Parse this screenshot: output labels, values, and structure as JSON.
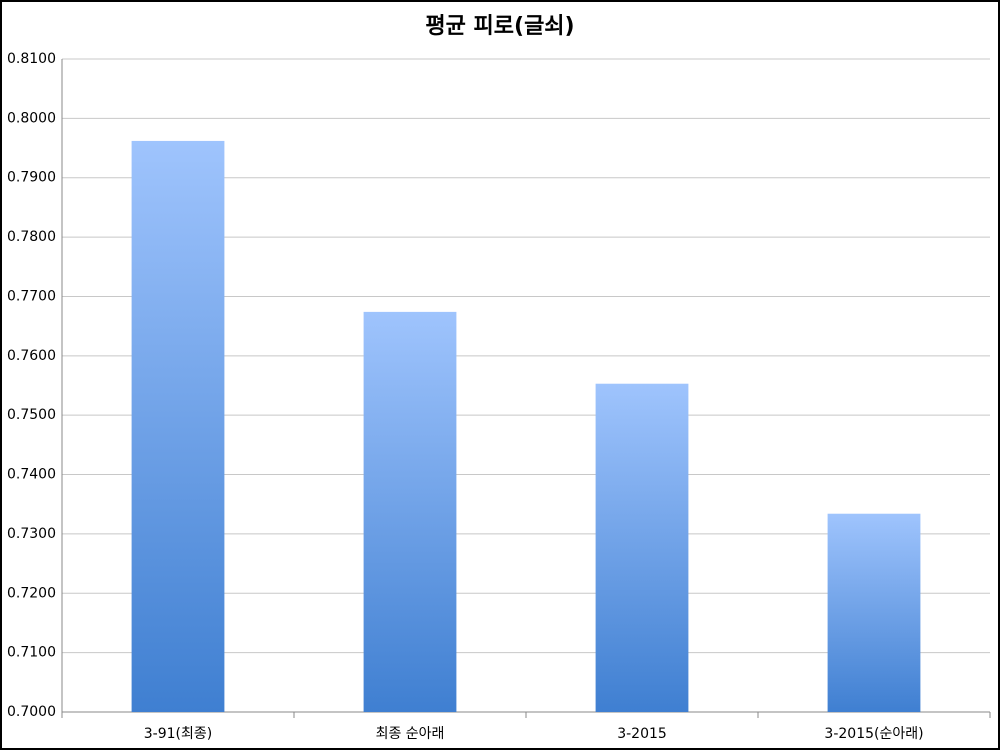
{
  "chart_data": {
    "type": "bar",
    "title": "평균 피로(글쇠)",
    "categories": [
      "3-91(최종)",
      "최종 순아래",
      "3-2015",
      "3-2015(순아래)"
    ],
    "values": [
      0.7962,
      0.7674,
      0.7553,
      0.7334
    ],
    "ylim": [
      0.7,
      0.81
    ],
    "yticks": [
      {
        "value": 0.7,
        "label": "0.7000"
      },
      {
        "value": 0.71,
        "label": "0.7100"
      },
      {
        "value": 0.72,
        "label": "0.7200"
      },
      {
        "value": 0.73,
        "label": "0.7300"
      },
      {
        "value": 0.74,
        "label": "0.7400"
      },
      {
        "value": 0.75,
        "label": "0.7500"
      },
      {
        "value": 0.76,
        "label": "0.7600"
      },
      {
        "value": 0.77,
        "label": "0.7700"
      },
      {
        "value": 0.78,
        "label": "0.7800"
      },
      {
        "value": 0.79,
        "label": "0.7900"
      },
      {
        "value": 0.8,
        "label": "0.8000"
      },
      {
        "value": 0.81,
        "label": "0.8100"
      }
    ],
    "grid": true
  }
}
